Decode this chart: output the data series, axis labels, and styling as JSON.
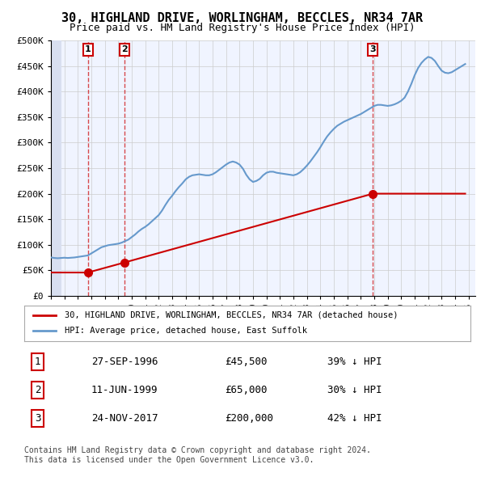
{
  "title": "30, HIGHLAND DRIVE, WORLINGHAM, BECCLES, NR34 7AR",
  "subtitle": "Price paid vs. HM Land Registry's House Price Index (HPI)",
  "ylabel": "",
  "xlabel": "",
  "ylim": [
    0,
    500000
  ],
  "yticks": [
    0,
    50000,
    100000,
    150000,
    200000,
    250000,
    300000,
    350000,
    400000,
    450000,
    500000
  ],
  "ytick_labels": [
    "£0",
    "£50K",
    "£100K",
    "£150K",
    "£200K",
    "£250K",
    "£300K",
    "£350K",
    "£400K",
    "£450K",
    "£500K"
  ],
  "xlim_start": 1994.0,
  "xlim_end": 2025.5,
  "background_color": "#ffffff",
  "plot_bg_color": "#f0f4ff",
  "hatch_color": "#d8dff0",
  "grid_color": "#cccccc",
  "property_color": "#cc0000",
  "hpi_color": "#6699cc",
  "legend_label_property": "30, HIGHLAND DRIVE, WORLINGHAM, BECCLES, NR34 7AR (detached house)",
  "legend_label_hpi": "HPI: Average price, detached house, East Suffolk",
  "sales": [
    {
      "num": 1,
      "date": "27-SEP-1996",
      "price": 45500,
      "year": 1996.74,
      "hpi_pct": "39% ↓ HPI"
    },
    {
      "num": 2,
      "date": "11-JUN-1999",
      "price": 65000,
      "year": 1999.44,
      "hpi_pct": "30% ↓ HPI"
    },
    {
      "num": 3,
      "date": "24-NOV-2017",
      "price": 200000,
      "year": 2017.9,
      "hpi_pct": "42% ↓ HPI"
    }
  ],
  "footer": "Contains HM Land Registry data © Crown copyright and database right 2024.\nThis data is licensed under the Open Government Licence v3.0.",
  "hpi_data_x": [
    1994.0,
    1994.25,
    1994.5,
    1994.75,
    1995.0,
    1995.25,
    1995.5,
    1995.75,
    1996.0,
    1996.25,
    1996.5,
    1996.75,
    1997.0,
    1997.25,
    1997.5,
    1997.75,
    1998.0,
    1998.25,
    1998.5,
    1998.75,
    1999.0,
    1999.25,
    1999.5,
    1999.75,
    2000.0,
    2000.25,
    2000.5,
    2000.75,
    2001.0,
    2001.25,
    2001.5,
    2001.75,
    2002.0,
    2002.25,
    2002.5,
    2002.75,
    2003.0,
    2003.25,
    2003.5,
    2003.75,
    2004.0,
    2004.25,
    2004.5,
    2004.75,
    2005.0,
    2005.25,
    2005.5,
    2005.75,
    2006.0,
    2006.25,
    2006.5,
    2006.75,
    2007.0,
    2007.25,
    2007.5,
    2007.75,
    2008.0,
    2008.25,
    2008.5,
    2008.75,
    2009.0,
    2009.25,
    2009.5,
    2009.75,
    2010.0,
    2010.25,
    2010.5,
    2010.75,
    2011.0,
    2011.25,
    2011.5,
    2011.75,
    2012.0,
    2012.25,
    2012.5,
    2012.75,
    2013.0,
    2013.25,
    2013.5,
    2013.75,
    2014.0,
    2014.25,
    2014.5,
    2014.75,
    2015.0,
    2015.25,
    2015.5,
    2015.75,
    2016.0,
    2016.25,
    2016.5,
    2016.75,
    2017.0,
    2017.25,
    2017.5,
    2017.75,
    2018.0,
    2018.25,
    2018.5,
    2018.75,
    2019.0,
    2019.25,
    2019.5,
    2019.75,
    2020.0,
    2020.25,
    2020.5,
    2020.75,
    2021.0,
    2021.25,
    2021.5,
    2021.75,
    2022.0,
    2022.25,
    2022.5,
    2022.75,
    2023.0,
    2023.25,
    2023.5,
    2023.75,
    2024.0,
    2024.25,
    2024.5,
    2024.75
  ],
  "hpi_data_y": [
    75000,
    74000,
    73500,
    74000,
    74500,
    74000,
    74500,
    75000,
    76000,
    77000,
    78000,
    79000,
    83000,
    87000,
    91000,
    95000,
    97000,
    99000,
    100000,
    101000,
    102000,
    104000,
    107000,
    110000,
    115000,
    120000,
    126000,
    131000,
    135000,
    140000,
    146000,
    152000,
    158000,
    167000,
    178000,
    188000,
    196000,
    205000,
    213000,
    220000,
    228000,
    233000,
    236000,
    237000,
    238000,
    237000,
    236000,
    236000,
    238000,
    242000,
    247000,
    252000,
    257000,
    261000,
    263000,
    261000,
    257000,
    249000,
    237000,
    228000,
    223000,
    225000,
    229000,
    236000,
    241000,
    243000,
    243000,
    241000,
    240000,
    239000,
    238000,
    237000,
    236000,
    238000,
    242000,
    248000,
    255000,
    263000,
    272000,
    281000,
    291000,
    302000,
    312000,
    320000,
    327000,
    333000,
    337000,
    341000,
    344000,
    347000,
    350000,
    353000,
    356000,
    360000,
    364000,
    368000,
    372000,
    374000,
    374000,
    373000,
    372000,
    373000,
    375000,
    378000,
    382000,
    388000,
    400000,
    415000,
    432000,
    446000,
    456000,
    463000,
    468000,
    466000,
    460000,
    450000,
    441000,
    437000,
    436000,
    438000,
    442000,
    446000,
    450000,
    454000
  ],
  "property_data_x": [
    1994.0,
    1996.74,
    1999.44,
    2017.9,
    2024.75
  ],
  "property_data_y": [
    45500,
    45500,
    65000,
    200000,
    200000
  ]
}
